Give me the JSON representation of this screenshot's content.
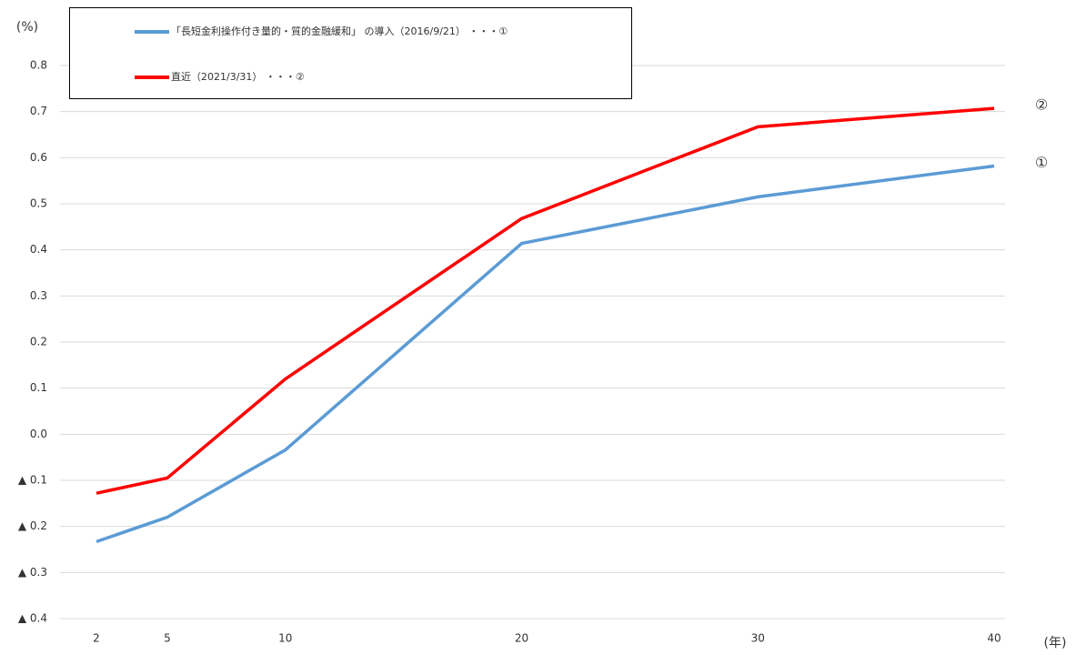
{
  "chart_data": {
    "type": "line",
    "y_label": "(%)",
    "x_label": "(年)",
    "x": [
      2,
      5,
      10,
      20,
      30,
      40
    ],
    "xlim": [
      0.46,
      40.46
    ],
    "xticks": [
      2,
      5,
      10,
      20,
      30,
      40
    ],
    "ylim": [
      -0.4,
      0.8
    ],
    "yticks": [
      {
        "value": -0.4,
        "label": "▲ 0.4"
      },
      {
        "value": -0.3,
        "label": "▲ 0.3"
      },
      {
        "value": -0.2,
        "label": "▲ 0.2"
      },
      {
        "value": -0.1,
        "label": "▲ 0.1"
      },
      {
        "value": 0,
        "label": "0.0"
      },
      0.1,
      0.2,
      0.3,
      0.4,
      0.5,
      0.6,
      0.7,
      0.8
    ],
    "grid": true,
    "series": [
      {
        "name": "「長短金利操作付き量的・質的金融緩和」 の導入（2016/9/21） ・・・①",
        "color": "#5b9bd5",
        "end_label": "①",
        "values": [
          -0.233,
          -0.18,
          -0.034,
          0.414,
          0.515,
          0.582
        ]
      },
      {
        "name": "直近（2021/3/31） ・・・②",
        "color": "#ff0000",
        "end_label": "②",
        "values": [
          -0.128,
          -0.095,
          0.12,
          0.468,
          0.667,
          0.707
        ]
      }
    ]
  }
}
